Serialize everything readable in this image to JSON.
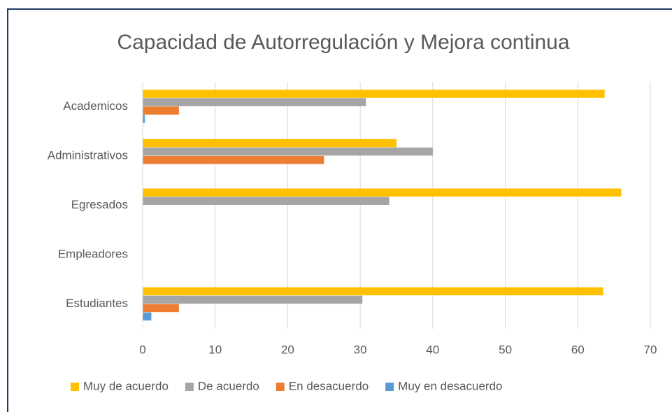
{
  "chart_data": {
    "type": "hbar",
    "title": "Capacidad de Autorregulación y Mejora continua",
    "categories": [
      "Academicos",
      "Administrativos",
      "Egresados",
      "Empleadores",
      "Estudiantes"
    ],
    "series": [
      {
        "name": "Muy de acuerdo",
        "color": "#ffc000",
        "values": [
          63.7,
          35,
          66,
          0,
          63.5
        ]
      },
      {
        "name": "De acuerdo",
        "color": "#a5a5a5",
        "values": [
          30.8,
          40,
          34,
          0,
          30.3
        ]
      },
      {
        "name": "En desacuerdo",
        "color": "#ed7d31",
        "values": [
          5,
          25,
          0,
          0,
          5
        ]
      },
      {
        "name": "Muy en desacuerdo",
        "color": "#5b9bd5",
        "values": [
          0.3,
          0,
          0,
          0,
          1.2
        ]
      }
    ],
    "xlim": [
      0,
      70
    ],
    "xticks": [
      0,
      10,
      20,
      30,
      40,
      50,
      60,
      70
    ],
    "grid": true,
    "legend": "bottom"
  }
}
